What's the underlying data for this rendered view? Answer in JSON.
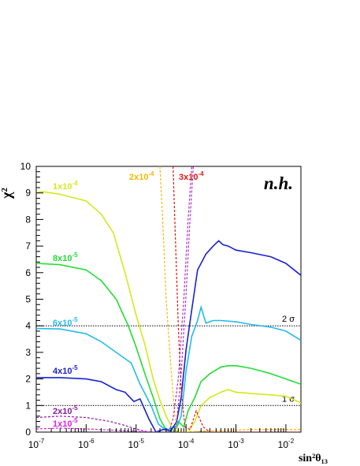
{
  "chart_data": {
    "type": "line",
    "title": "",
    "xlabel": "sin²θ₁₃",
    "ylabel": "χ²",
    "xscale": "log",
    "xlim": [
      1e-07,
      0.02
    ],
    "ylim": [
      0,
      10
    ],
    "grid": false,
    "corner_label": "n.h.",
    "x_tick_labels": [
      {
        "base": "10",
        "exp": "-7",
        "value": 1e-07
      },
      {
        "base": "10",
        "exp": "-6",
        "value": 1e-06
      },
      {
        "base": "10",
        "exp": "-5",
        "value": 1e-05
      },
      {
        "base": "10",
        "exp": "-4",
        "value": 0.0001
      },
      {
        "base": "10",
        "exp": "-3",
        "value": 0.001
      },
      {
        "base": "10",
        "exp": "-2",
        "value": 0.01
      }
    ],
    "y_ticks": [
      0,
      1,
      2,
      3,
      4,
      5,
      6,
      7,
      8,
      9,
      10
    ],
    "reference_lines": [
      {
        "label": "1 σ",
        "y": 1
      },
      {
        "label": "2 σ",
        "y": 4
      }
    ],
    "series": [
      {
        "name": "1x10",
        "exp": "-4",
        "color": "#d4e81a",
        "style": "solid",
        "points": [
          [
            1e-07,
            9.0
          ],
          [
            1.3e-07,
            9.05
          ],
          [
            3e-07,
            8.95
          ],
          [
            1e-06,
            8.7
          ],
          [
            2e-06,
            8.2
          ],
          [
            3.5e-06,
            7.5
          ],
          [
            6e-06,
            6.0
          ],
          [
            1e-05,
            4.4
          ],
          [
            1.5e-05,
            3.3
          ],
          [
            2.2e-05,
            2.0
          ],
          [
            3e-05,
            1.2
          ],
          [
            4e-05,
            0.6
          ],
          [
            5e-05,
            0.25
          ],
          [
            6.5e-05,
            0.05
          ],
          [
            8e-05,
            0.0
          ],
          [
            0.00011,
            0.0
          ],
          [
            0.00015,
            0.4
          ],
          [
            0.0002,
            1.0
          ],
          [
            0.0003,
            1.3
          ],
          [
            0.0005,
            1.5
          ],
          [
            0.0007,
            1.6
          ],
          [
            0.001,
            1.5
          ],
          [
            0.002,
            1.45
          ],
          [
            0.005,
            1.4
          ],
          [
            0.01,
            1.35
          ],
          [
            0.02,
            1.1
          ]
        ]
      },
      {
        "name": "8x10",
        "exp": "-5",
        "color": "#22dd33",
        "style": "solid",
        "points": [
          [
            1e-07,
            6.35
          ],
          [
            3e-07,
            6.3
          ],
          [
            1e-06,
            6.1
          ],
          [
            2e-06,
            5.7
          ],
          [
            4e-06,
            5.0
          ],
          [
            7e-06,
            4.0
          ],
          [
            1e-05,
            3.2
          ],
          [
            1.5e-05,
            2.2
          ],
          [
            2.2e-05,
            1.3
          ],
          [
            3e-05,
            0.5
          ],
          [
            3.8e-05,
            0.15
          ],
          [
            4.5e-05,
            0.05
          ],
          [
            5.5e-05,
            0.0
          ],
          [
            7e-05,
            0.4
          ],
          [
            9e-05,
            0.2
          ],
          [
            0.00011,
            0.8
          ],
          [
            0.00015,
            1.3
          ],
          [
            0.0002,
            1.9
          ],
          [
            0.0003,
            2.2
          ],
          [
            0.0005,
            2.45
          ],
          [
            0.0007,
            2.5
          ],
          [
            0.001,
            2.5
          ],
          [
            0.002,
            2.4
          ],
          [
            0.005,
            2.2
          ],
          [
            0.01,
            2.0
          ],
          [
            0.02,
            1.8
          ]
        ]
      },
      {
        "name": "6x10",
        "exp": "-5",
        "color": "#22bbee",
        "style": "solid",
        "points": [
          [
            1e-07,
            3.9
          ],
          [
            3e-07,
            3.88
          ],
          [
            1e-06,
            3.7
          ],
          [
            2e-06,
            3.4
          ],
          [
            4e-06,
            3.0
          ],
          [
            8e-06,
            2.6
          ],
          [
            1.2e-05,
            1.8
          ],
          [
            2e-05,
            1.0
          ],
          [
            2.8e-05,
            0.3
          ],
          [
            3.5e-05,
            0.15
          ],
          [
            4.5e-05,
            0.1
          ],
          [
            5.5e-05,
            0.2
          ],
          [
            6.5e-05,
            0.15
          ],
          [
            8e-05,
            0.6
          ],
          [
            0.0001,
            2.3
          ],
          [
            0.00013,
            3.6
          ],
          [
            0.00017,
            4.2
          ],
          [
            0.0002,
            4.7
          ],
          [
            0.00025,
            4.1
          ],
          [
            0.00035,
            4.2
          ],
          [
            0.0005,
            4.2
          ],
          [
            0.001,
            4.15
          ],
          [
            0.002,
            4.05
          ],
          [
            0.005,
            3.95
          ],
          [
            0.01,
            3.8
          ],
          [
            0.02,
            3.45
          ]
        ]
      },
      {
        "name": "4x10",
        "exp": "-5",
        "color": "#1a22cc",
        "style": "solid",
        "points": [
          [
            1e-07,
            2.05
          ],
          [
            3e-07,
            2.05
          ],
          [
            1e-06,
            2.0
          ],
          [
            2e-06,
            1.9
          ],
          [
            4e-06,
            1.6
          ],
          [
            6e-06,
            1.5
          ],
          [
            9e-06,
            1.15
          ],
          [
            1.2e-05,
            1.25
          ],
          [
            1.8e-05,
            0.5
          ],
          [
            2.5e-05,
            0.0
          ],
          [
            3.5e-05,
            0.1
          ],
          [
            5e-05,
            0.05
          ],
          [
            6.5e-05,
            0.4
          ],
          [
            8e-05,
            1.3
          ],
          [
            0.0001,
            3.1
          ],
          [
            0.00013,
            4.6
          ],
          [
            0.00017,
            6.1
          ],
          [
            0.00025,
            6.7
          ],
          [
            0.00035,
            7.0
          ],
          [
            0.00045,
            7.2
          ],
          [
            0.00055,
            7.05
          ],
          [
            0.0007,
            7.0
          ],
          [
            0.001,
            6.85
          ],
          [
            0.002,
            6.75
          ],
          [
            0.005,
            6.6
          ],
          [
            0.01,
            6.35
          ],
          [
            0.02,
            5.9
          ]
        ]
      },
      {
        "name": "2x10",
        "exp": "-5",
        "color": "#8a1aa8",
        "style": "dashed",
        "points": [
          [
            1e-07,
            0.55
          ],
          [
            3e-07,
            0.6
          ],
          [
            1e-06,
            0.55
          ],
          [
            3e-06,
            0.4
          ],
          [
            6e-06,
            0.25
          ],
          [
            1e-05,
            0.12
          ],
          [
            1.5e-05,
            0.03
          ],
          [
            2e-05,
            0.0
          ],
          [
            3e-05,
            0.0
          ]
        ]
      },
      {
        "name": "1x10",
        "exp": "-5",
        "color": "#dd22dd",
        "style": "dashed",
        "points": [
          [
            1e-07,
            0.12
          ],
          [
            3e-07,
            0.15
          ],
          [
            1e-06,
            0.12
          ],
          [
            3e-06,
            0.08
          ],
          [
            1e-05,
            0.03
          ],
          [
            2e-05,
            0.0
          ]
        ]
      },
      {
        "name": "2x10",
        "exp": "-4",
        "color": "#f5b800",
        "style": "dashed",
        "points": [
          [
            3e-05,
            10.0
          ],
          [
            3.4e-05,
            8.0
          ],
          [
            4e-05,
            5.0
          ],
          [
            5e-05,
            2.4
          ],
          [
            6e-05,
            0.6
          ],
          [
            7e-05,
            0.0
          ],
          [
            0.0001,
            0.0
          ],
          [
            0.0003,
            0.05
          ],
          [
            0.002,
            0.1
          ],
          [
            0.02,
            0.1
          ]
        ]
      },
      {
        "name": "3x10",
        "exp": "-4",
        "color": "#e01515",
        "style": "dashed",
        "points": [
          [
            5.5e-05,
            10.0
          ],
          [
            6.2e-05,
            7.0
          ],
          [
            7e-05,
            4.0
          ],
          [
            8e-05,
            1.6
          ],
          [
            9.5e-05,
            0.2
          ],
          [
            0.00012,
            0.1
          ],
          [
            0.00016,
            0.8
          ],
          [
            0.00022,
            0.2
          ],
          [
            0.0003,
            0.0
          ],
          [
            0.02,
            0.0
          ]
        ]
      },
      {
        "name": "",
        "exp": "",
        "color": "#aa33cc",
        "style": "dashed",
        "points": [
          [
            5.5e-05,
            0.0
          ],
          [
            6.5e-05,
            0.4
          ],
          [
            8e-05,
            2.2
          ],
          [
            0.0001,
            5.2
          ],
          [
            0.00012,
            8.0
          ],
          [
            0.00014,
            10.0
          ]
        ]
      },
      {
        "name": "",
        "exp": "",
        "color": "#aa33cc",
        "style": "dashed",
        "points": [
          [
            4.5e-05,
            0.0
          ],
          [
            5.5e-05,
            0.5
          ],
          [
            7e-05,
            2.0
          ],
          [
            9e-05,
            5.0
          ],
          [
            0.00011,
            8.0
          ],
          [
            0.00013,
            10.0
          ]
        ]
      }
    ]
  }
}
